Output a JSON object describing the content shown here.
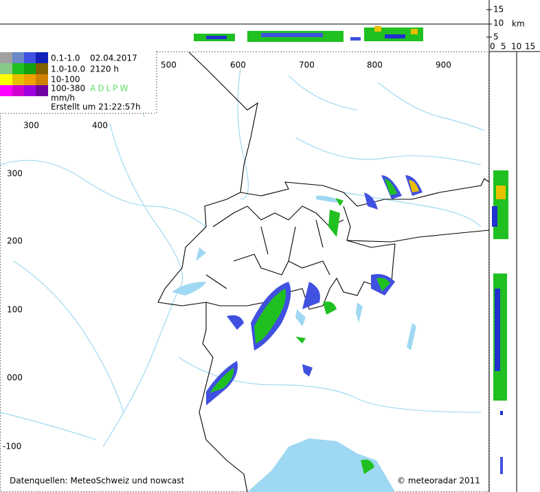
{
  "legend": {
    "rows": [
      {
        "range": "0.1-1.0",
        "info": "02.04.2017"
      },
      {
        "range": "1.0-10.0",
        "info": "2120 h"
      },
      {
        "range": "10-100"
      },
      {
        "range": "100-380",
        "info": "ADLPW"
      }
    ],
    "unit": "mm/h",
    "created": "Erstellt um 21:22:57h"
  },
  "axes": {
    "x_top": [
      "500",
      "600",
      "700",
      "800",
      "900"
    ],
    "x_inner": [
      "300",
      "400"
    ],
    "y_left": [
      "300",
      "200",
      "100",
      "000",
      "-100"
    ],
    "profile_height": [
      "15",
      "10",
      "5",
      "0"
    ],
    "profile_unit": "km",
    "profile_width": [
      "5",
      "10",
      "15"
    ]
  },
  "footer": {
    "source": "Datenquellen: MeteoSchweiz und nowcast",
    "copyright": "© meteoradar 2011"
  }
}
